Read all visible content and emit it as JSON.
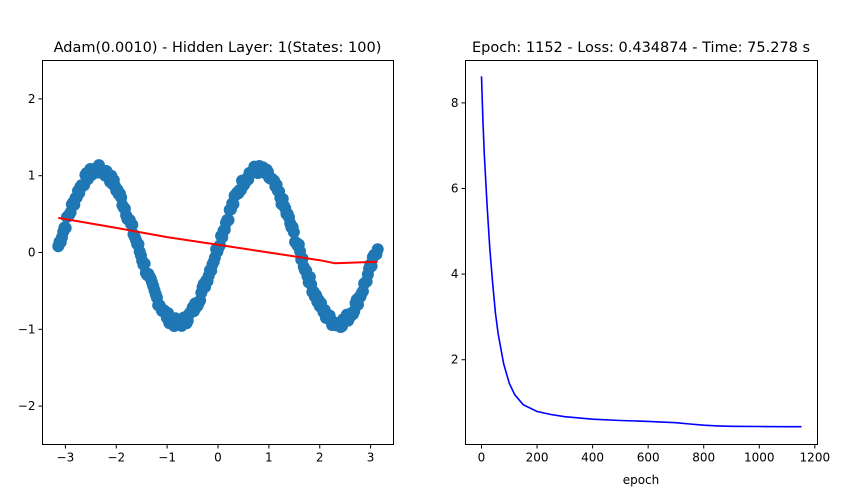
{
  "colors": {
    "scatter": "#1f77b4",
    "fit_line": "#ff0000",
    "loss_line": "#0000ff",
    "frame": "#000000",
    "background": "#ffffff"
  },
  "chart_data": [
    {
      "type": "scatter",
      "title": "Adam(0.0010) - Hidden Layer: 1(States: 100)",
      "xlabel": "",
      "ylabel": "",
      "xlim": [
        -3.45,
        3.45
      ],
      "ylim": [
        -2.5,
        2.5
      ],
      "xticks": [
        -3,
        -2,
        -1,
        0,
        1,
        2,
        3
      ],
      "xtick_labels": [
        "−3",
        "−2",
        "−1",
        "0",
        "1",
        "2",
        "3"
      ],
      "yticks": [
        -2,
        -1,
        0,
        1,
        2
      ],
      "ytick_labels": [
        "−2",
        "−1",
        "0",
        "1",
        "2"
      ],
      "grid": false,
      "series": [
        {
          "kind": "scatter",
          "function": "sin(2x) with noise",
          "x_range": [
            -3.14,
            3.14
          ],
          "amplitude": 1.0,
          "frequency": 2,
          "offset": 0.08,
          "noise": 0.06,
          "count": 260,
          "color": "#1f77b4"
        },
        {
          "kind": "line",
          "x": [
            -3.14,
            -2.0,
            -1.0,
            0.0,
            1.0,
            2.0,
            2.3,
            3.14
          ],
          "y": [
            0.45,
            0.32,
            0.2,
            0.1,
            0.0,
            -0.1,
            -0.14,
            -0.12
          ],
          "color": "#ff0000"
        }
      ]
    },
    {
      "type": "line",
      "title": "Epoch: 1152 - Loss: 0.434874 - Time: 75.278 s",
      "xlabel": "epoch",
      "ylabel": "",
      "xlim": [
        -57.6,
        1209.6
      ],
      "ylim": [
        0.02,
        8.99
      ],
      "xticks": [
        0,
        200,
        400,
        600,
        800,
        1000,
        1200
      ],
      "xtick_labels": [
        "0",
        "200",
        "400",
        "600",
        "800",
        "1000",
        "1200"
      ],
      "yticks": [
        2,
        4,
        6,
        8
      ],
      "ytick_labels": [
        "2",
        "4",
        "6",
        "8"
      ],
      "grid": false,
      "series": [
        {
          "kind": "line",
          "x": [
            0,
            5,
            10,
            20,
            30,
            40,
            50,
            60,
            80,
            100,
            120,
            150,
            200,
            250,
            300,
            400,
            500,
            600,
            700,
            750,
            800,
            850,
            900,
            1000,
            1100,
            1152
          ],
          "y": [
            8.62,
            7.6,
            6.8,
            5.6,
            4.6,
            3.8,
            3.1,
            2.6,
            1.9,
            1.45,
            1.18,
            0.95,
            0.79,
            0.72,
            0.67,
            0.61,
            0.58,
            0.56,
            0.53,
            0.5,
            0.47,
            0.455,
            0.445,
            0.44,
            0.436,
            0.435
          ],
          "color": "#0000ff"
        }
      ]
    }
  ]
}
